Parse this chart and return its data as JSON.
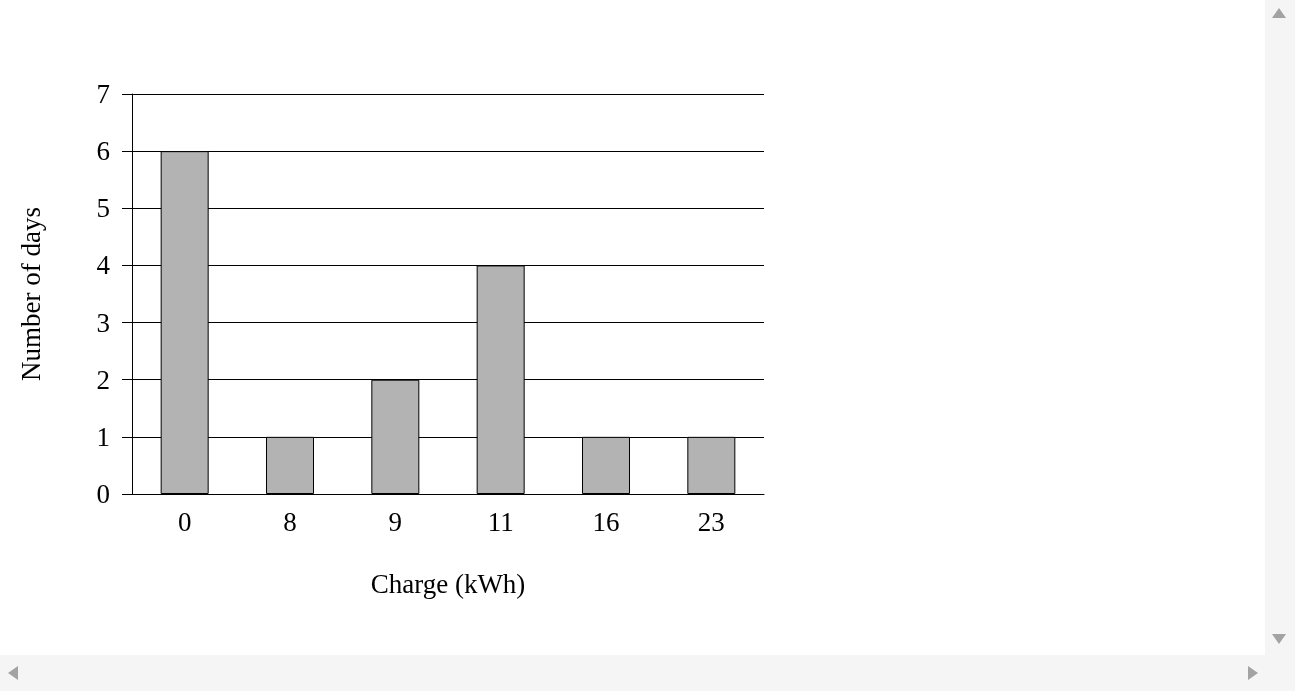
{
  "chart_data": {
    "type": "bar",
    "xlabel": "Charge (kWh)",
    "ylabel": "Number of days",
    "categories": [
      "0",
      "8",
      "9",
      "11",
      "16",
      "23"
    ],
    "values": [
      6,
      1,
      2,
      4,
      1,
      1
    ],
    "color": "#b3b3b3",
    "ylim": [
      0,
      7
    ],
    "yticks": [
      0,
      1,
      2,
      3,
      4,
      5,
      6,
      7
    ],
    "grid": "y"
  }
}
